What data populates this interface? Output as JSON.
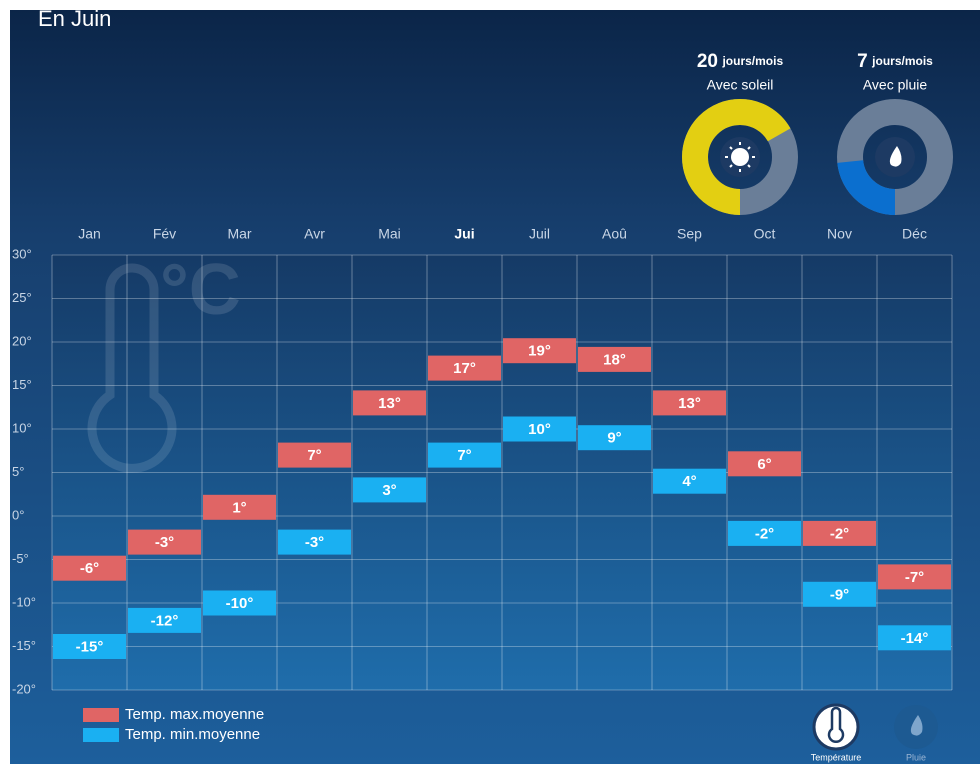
{
  "header": {
    "title": "En Juin"
  },
  "sun": {
    "value": 20,
    "unit": "jours/mois",
    "label": "Avec soleil",
    "color": "#e3cf12"
  },
  "rain": {
    "value": 7,
    "unit": "jours/mois",
    "label": "Avec pluie",
    "color": "#0b6fcf"
  },
  "chart_data": {
    "type": "floating-label-bar",
    "watermark": "°C",
    "categories": [
      "Jan",
      "Fév",
      "Mar",
      "Avr",
      "Mai",
      "Jui",
      "Juil",
      "Aoû",
      "Sep",
      "Oct",
      "Nov",
      "Déc"
    ],
    "current_index": 5,
    "series": [
      {
        "name": "Temp. max.moyenne",
        "color": "#e06565",
        "values": [
          -6,
          -3,
          1,
          7,
          13,
          17,
          19,
          18,
          13,
          6,
          -2,
          -7
        ],
        "value_labels": [
          "-6°",
          "-3°",
          "1°",
          "7°",
          "13°",
          "17°",
          "19°",
          "18°",
          "13°",
          "6°",
          "-2°",
          "-7°"
        ]
      },
      {
        "name": "Temp. min.moyenne",
        "color": "#1ab0f2",
        "values": [
          -15,
          -12,
          -10,
          -3,
          3,
          7,
          10,
          9,
          4,
          -2,
          -9,
          -14
        ],
        "value_labels": [
          "-15°",
          "-12°",
          "-10°",
          "-3°",
          "3°",
          "7°",
          "10°",
          "9°",
          "4°",
          "-2°",
          "-9°",
          "-14°"
        ]
      }
    ],
    "ylim": [
      -20,
      30
    ],
    "yticks": [
      {
        "value": 30,
        "label": "30°"
      },
      {
        "value": 25,
        "label": "25°"
      },
      {
        "value": 20,
        "label": "20°"
      },
      {
        "value": 15,
        "label": "15°"
      },
      {
        "value": 10,
        "label": "10°"
      },
      {
        "value": 5,
        "label": "5°"
      },
      {
        "value": 0,
        "label": "0°"
      },
      {
        "value": -5,
        "label": "-5°"
      },
      {
        "value": -10,
        "label": "-10°"
      },
      {
        "value": -15,
        "label": "-15°"
      },
      {
        "value": -20,
        "label": "-20°"
      }
    ],
    "grid": true
  },
  "buttons": [
    "Température",
    "Pluie"
  ]
}
